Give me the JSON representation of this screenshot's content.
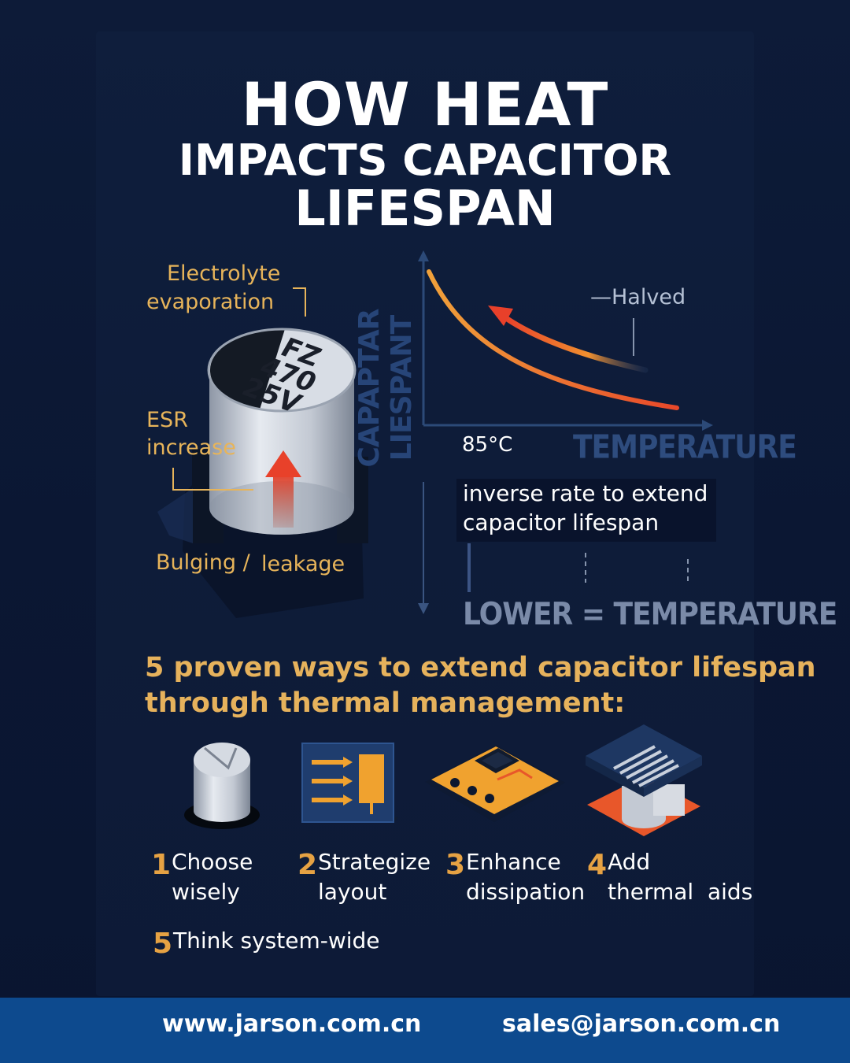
{
  "title": {
    "line1": "HOW HEAT",
    "line2": "IMPACTS CAPACITOR",
    "line3": "LIFESPAN"
  },
  "capacitor": {
    "marking_line1": "FZ",
    "marking_line2": "470",
    "marking_line3": "25V",
    "labels": {
      "electrolyte_line1": "Electrolyte",
      "electrolyte_line2": "evaporation",
      "esr_line1": "ESR",
      "esr_line2": "increase",
      "bulging": "Bulging /",
      "leakage": "leakage"
    }
  },
  "chart": {
    "y_label": "CAPAPTAR LIESPANT",
    "x_label": "TEMPERATURE",
    "halved_label": "—Halved",
    "temp_label": "85°C",
    "inverse_line1": "inverse rate to extend",
    "inverse_line2": "capacitor lifespan",
    "lower_label": "LOWER = TEMPERATURE"
  },
  "ways": {
    "line1": "5 proven ways to extend capacitor lifespan",
    "line2": "through thermal management:"
  },
  "steps": [
    {
      "num": "1",
      "line1": "Choose",
      "line2": "wisely"
    },
    {
      "num": "2",
      "line1": "Strategize",
      "line2": "layout"
    },
    {
      "num": "3",
      "line1": "Enhance",
      "line2": "dissipation"
    },
    {
      "num": "4",
      "line1": "Add",
      "line2": "thermal  aids"
    },
    {
      "num": "5",
      "line1": "Think system-wide",
      "line2": ""
    }
  ],
  "footer": {
    "website": "www.jarson.com.cn",
    "email": "sales@jarson.com.cn",
    "website_icon": "globe-icon",
    "email_icon": "envelope-icon"
  },
  "colors": {
    "background": "#0b1631",
    "accent": "#e6b25c",
    "heat": "#e8572a",
    "footer": "#0d4a8e"
  }
}
